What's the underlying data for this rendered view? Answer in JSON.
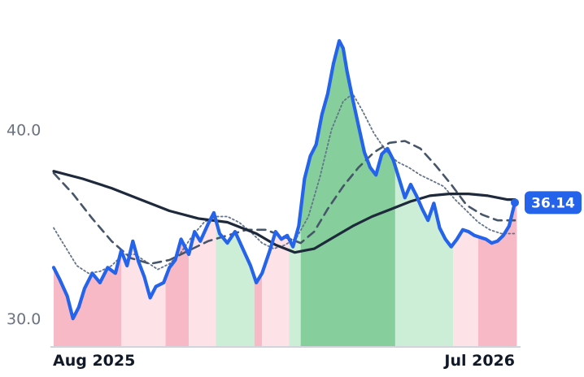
{
  "chart_data": {
    "type": "line",
    "x_axis": {
      "labels": [
        {
          "text": "Aug 2025",
          "index": 0
        },
        {
          "text": "Jul 2026",
          "index": 239
        }
      ]
    },
    "y_axis": {
      "ylim": [
        28.5,
        46.0
      ],
      "ticks": [
        {
          "value": 30.0,
          "label": "30.0"
        },
        {
          "value": 40.0,
          "label": "40.0"
        }
      ]
    },
    "grid": false,
    "last_value_label": "36.14",
    "colors": {
      "price": "#2563eb",
      "ma_long": "#1e293b",
      "ma_mid": "#475569",
      "ma_short": "#64748b",
      "band_strong_up": "#86cf9c",
      "band_up": "#cdeed6",
      "band_down": "#fde2e7",
      "band_strong_down": "#f7b9c5",
      "axis": "#d1d5db"
    },
    "regime_bands": [
      {
        "from": 0,
        "to": 35,
        "state": "strong_down"
      },
      {
        "from": 35,
        "to": 58,
        "state": "down"
      },
      {
        "from": 58,
        "to": 70,
        "state": "strong_down"
      },
      {
        "from": 70,
        "to": 84,
        "state": "down"
      },
      {
        "from": 84,
        "to": 104,
        "state": "up"
      },
      {
        "from": 104,
        "to": 108,
        "state": "strong_down"
      },
      {
        "from": 108,
        "to": 122,
        "state": "down"
      },
      {
        "from": 122,
        "to": 128,
        "state": "up"
      },
      {
        "from": 128,
        "to": 177,
        "state": "strong_up"
      },
      {
        "from": 177,
        "to": 207,
        "state": "up"
      },
      {
        "from": 207,
        "to": 220,
        "state": "down"
      },
      {
        "from": 220,
        "to": 240,
        "state": "strong_down"
      }
    ],
    "series": [
      {
        "role": "price",
        "style": "thick",
        "points": [
          [
            0,
            32.7
          ],
          [
            3,
            32.1
          ],
          [
            7,
            31.2
          ],
          [
            10,
            30.0
          ],
          [
            13,
            30.6
          ],
          [
            16,
            31.6
          ],
          [
            20,
            32.4
          ],
          [
            24,
            31.9
          ],
          [
            28,
            32.7
          ],
          [
            32,
            32.4
          ],
          [
            35,
            33.6
          ],
          [
            38,
            32.8
          ],
          [
            41,
            34.1
          ],
          [
            44,
            33.0
          ],
          [
            47,
            32.2
          ],
          [
            50,
            31.1
          ],
          [
            53,
            31.7
          ],
          [
            57,
            31.9
          ],
          [
            60,
            32.7
          ],
          [
            63,
            33.1
          ],
          [
            66,
            34.2
          ],
          [
            70,
            33.4
          ],
          [
            73,
            34.6
          ],
          [
            76,
            34.1
          ],
          [
            80,
            35.0
          ],
          [
            83,
            35.6
          ],
          [
            86,
            34.5
          ],
          [
            90,
            34.0
          ],
          [
            94,
            34.6
          ],
          [
            98,
            33.7
          ],
          [
            102,
            32.8
          ],
          [
            105,
            31.9
          ],
          [
            108,
            32.4
          ],
          [
            112,
            33.6
          ],
          [
            115,
            34.6
          ],
          [
            118,
            34.2
          ],
          [
            121,
            34.4
          ],
          [
            124,
            33.8
          ],
          [
            127,
            34.9
          ],
          [
            130,
            37.4
          ],
          [
            133,
            38.6
          ],
          [
            136,
            39.2
          ],
          [
            139,
            40.8
          ],
          [
            142,
            41.9
          ],
          [
            145,
            43.5
          ],
          [
            148,
            44.7
          ],
          [
            150,
            44.3
          ],
          [
            152,
            43.1
          ],
          [
            155,
            41.6
          ],
          [
            158,
            40.2
          ],
          [
            161,
            38.8
          ],
          [
            164,
            38.0
          ],
          [
            167,
            37.6
          ],
          [
            170,
            38.7
          ],
          [
            173,
            39.0
          ],
          [
            176,
            38.4
          ],
          [
            179,
            37.4
          ],
          [
            182,
            36.4
          ],
          [
            185,
            37.1
          ],
          [
            188,
            36.5
          ],
          [
            191,
            35.8
          ],
          [
            194,
            35.2
          ],
          [
            197,
            36.1
          ],
          [
            200,
            34.8
          ],
          [
            203,
            34.2
          ],
          [
            206,
            33.8
          ],
          [
            209,
            34.2
          ],
          [
            212,
            34.7
          ],
          [
            215,
            34.6
          ],
          [
            218,
            34.4
          ],
          [
            221,
            34.3
          ],
          [
            224,
            34.2
          ],
          [
            227,
            34.0
          ],
          [
            230,
            34.1
          ],
          [
            233,
            34.4
          ],
          [
            236,
            34.9
          ],
          [
            239,
            36.14
          ]
        ]
      },
      {
        "role": "ma_long",
        "style": "solid",
        "points": [
          [
            0,
            37.8
          ],
          [
            15,
            37.4
          ],
          [
            30,
            36.9
          ],
          [
            45,
            36.3
          ],
          [
            60,
            35.7
          ],
          [
            75,
            35.3
          ],
          [
            90,
            35.1
          ],
          [
            105,
            34.5
          ],
          [
            115,
            33.9
          ],
          [
            125,
            33.5
          ],
          [
            135,
            33.7
          ],
          [
            145,
            34.3
          ],
          [
            155,
            34.9
          ],
          [
            165,
            35.4
          ],
          [
            175,
            35.8
          ],
          [
            185,
            36.2
          ],
          [
            195,
            36.5
          ],
          [
            205,
            36.6
          ],
          [
            215,
            36.6
          ],
          [
            225,
            36.5
          ],
          [
            235,
            36.3
          ],
          [
            239,
            36.3
          ]
        ]
      },
      {
        "role": "ma_mid",
        "style": "dashed",
        "points": [
          [
            0,
            37.7
          ],
          [
            10,
            36.6
          ],
          [
            20,
            35.3
          ],
          [
            30,
            34.1
          ],
          [
            40,
            33.2
          ],
          [
            50,
            32.9
          ],
          [
            60,
            33.1
          ],
          [
            70,
            33.6
          ],
          [
            80,
            34.1
          ],
          [
            90,
            34.4
          ],
          [
            100,
            34.7
          ],
          [
            110,
            34.7
          ],
          [
            120,
            34.3
          ],
          [
            128,
            34.0
          ],
          [
            135,
            34.6
          ],
          [
            142,
            35.8
          ],
          [
            150,
            37.0
          ],
          [
            158,
            38.0
          ],
          [
            166,
            38.8
          ],
          [
            174,
            39.3
          ],
          [
            182,
            39.4
          ],
          [
            190,
            39.0
          ],
          [
            198,
            38.1
          ],
          [
            206,
            37.1
          ],
          [
            214,
            36.0
          ],
          [
            222,
            35.5
          ],
          [
            230,
            35.2
          ],
          [
            239,
            35.2
          ]
        ]
      },
      {
        "role": "ma_short",
        "style": "dotted",
        "points": [
          [
            0,
            34.8
          ],
          [
            6,
            33.8
          ],
          [
            12,
            32.8
          ],
          [
            18,
            32.4
          ],
          [
            24,
            32.5
          ],
          [
            30,
            32.8
          ],
          [
            36,
            33.4
          ],
          [
            42,
            33.4
          ],
          [
            48,
            33.0
          ],
          [
            54,
            32.6
          ],
          [
            60,
            32.9
          ],
          [
            66,
            33.5
          ],
          [
            72,
            34.4
          ],
          [
            78,
            35.1
          ],
          [
            84,
            35.4
          ],
          [
            90,
            35.4
          ],
          [
            96,
            35.1
          ],
          [
            102,
            34.6
          ],
          [
            108,
            34.0
          ],
          [
            114,
            33.7
          ],
          [
            120,
            33.9
          ],
          [
            126,
            34.3
          ],
          [
            132,
            35.4
          ],
          [
            138,
            37.5
          ],
          [
            144,
            40.0
          ],
          [
            150,
            41.5
          ],
          [
            155,
            41.9
          ],
          [
            160,
            41.0
          ],
          [
            166,
            39.8
          ],
          [
            172,
            38.9
          ],
          [
            178,
            38.3
          ],
          [
            184,
            38.0
          ],
          [
            190,
            37.6
          ],
          [
            196,
            37.3
          ],
          [
            202,
            37.0
          ],
          [
            208,
            36.3
          ],
          [
            214,
            35.7
          ],
          [
            220,
            35.1
          ],
          [
            226,
            34.7
          ],
          [
            232,
            34.5
          ],
          [
            239,
            34.5
          ]
        ]
      }
    ]
  }
}
